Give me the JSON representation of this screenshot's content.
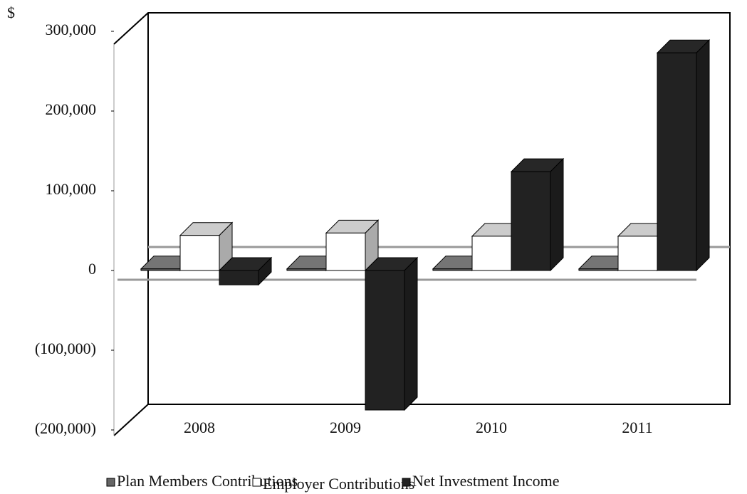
{
  "chart_data": {
    "type": "bar3d",
    "currency_symbol": "$",
    "categories": [
      "2008",
      "2009",
      "2010",
      "2011"
    ],
    "series": [
      {
        "name": "Plan Members Contributions",
        "color": "#666666",
        "values": [
          2000,
          2000,
          2000,
          2000
        ]
      },
      {
        "name": "Employer Contributions",
        "color": "#ffffff",
        "values": [
          44000,
          47000,
          43000,
          43000
        ]
      },
      {
        "name": "Net Investment Income",
        "color": "#222222",
        "values": [
          -18000,
          -175000,
          124000,
          273000
        ]
      }
    ],
    "ylim": [
      -200000,
      300000
    ],
    "yticks": [
      {
        "value": -200000,
        "label": "(200,000)"
      },
      {
        "value": -100000,
        "label": "(100,000)"
      },
      0,
      {
        "value": 100000,
        "label": "100,000"
      },
      {
        "value": 200000,
        "label": "200,000"
      },
      {
        "value": 300000,
        "label": "300,000"
      }
    ]
  }
}
